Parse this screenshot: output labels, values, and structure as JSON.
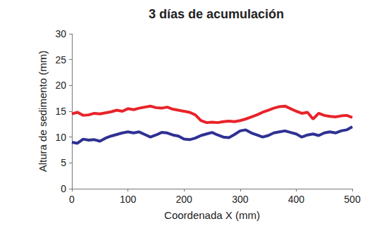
{
  "chart_data": {
    "type": "line",
    "title": "3 días de acumulación",
    "x_label": "Coordenada X (mm)",
    "y_label": "Altura de sedimento (mm)",
    "x": [
      0,
      10,
      20,
      30,
      40,
      50,
      60,
      70,
      80,
      90,
      100,
      110,
      120,
      130,
      140,
      150,
      160,
      170,
      180,
      190,
      200,
      210,
      220,
      230,
      240,
      250,
      260,
      270,
      280,
      290,
      300,
      310,
      320,
      330,
      340,
      350,
      360,
      370,
      380,
      390,
      400,
      410,
      420,
      430,
      440,
      450,
      460,
      470,
      480,
      490,
      500
    ],
    "series": [
      {
        "color": "#e8232a",
        "values": [
          14.5,
          14.8,
          14.2,
          14.3,
          14.6,
          14.5,
          14.7,
          14.9,
          15.2,
          15.0,
          15.5,
          15.3,
          15.6,
          15.8,
          16.0,
          15.7,
          15.6,
          15.8,
          15.4,
          15.2,
          15.0,
          14.8,
          14.3,
          13.2,
          12.8,
          12.9,
          12.8,
          13.0,
          13.1,
          13.0,
          13.2,
          13.5,
          13.9,
          14.3,
          14.8,
          15.2,
          15.6,
          15.9,
          16.0,
          15.5,
          15.0,
          14.6,
          14.8,
          13.5,
          14.6,
          14.2,
          14.0,
          13.9,
          14.1,
          14.2,
          13.8
        ]
      },
      {
        "color": "#2e3192",
        "values": [
          9.0,
          8.8,
          9.6,
          9.4,
          9.5,
          9.2,
          9.8,
          10.2,
          10.5,
          10.8,
          11.0,
          10.8,
          11.0,
          10.5,
          10.0,
          10.4,
          10.9,
          10.8,
          10.4,
          10.2,
          9.6,
          9.5,
          9.8,
          10.3,
          10.6,
          10.9,
          10.4,
          10.0,
          9.9,
          10.5,
          11.2,
          11.4,
          10.8,
          10.4,
          10.0,
          10.3,
          10.8,
          11.0,
          11.2,
          10.9,
          10.6,
          10.0,
          10.4,
          10.6,
          10.3,
          10.8,
          11.0,
          10.8,
          11.2,
          11.4,
          12.0
        ]
      }
    ],
    "xlim": [
      0,
      500
    ],
    "xticks": [
      0,
      100,
      200,
      300,
      400,
      500
    ],
    "ylim": [
      0,
      30
    ],
    "yticks": [
      0,
      5,
      10,
      15,
      20,
      25,
      30
    ],
    "grid": false
  }
}
